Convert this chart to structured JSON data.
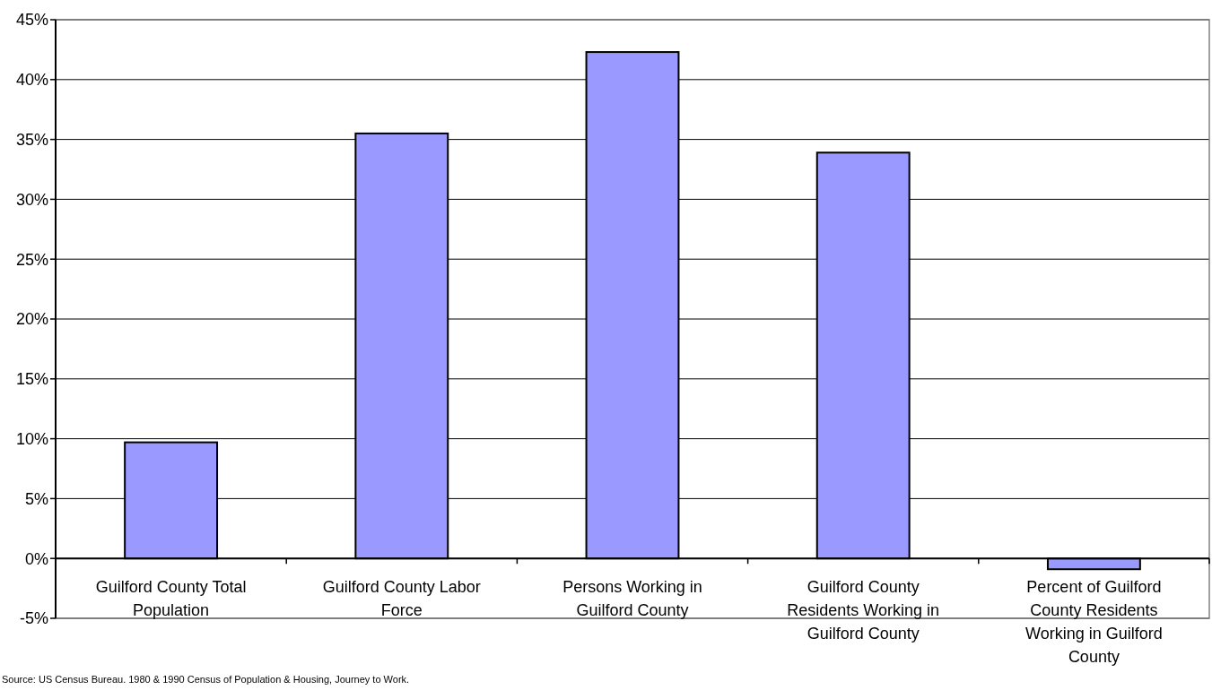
{
  "chart_data": {
    "type": "bar",
    "categories": [
      "Guilford County Total Population",
      "Guilford County Labor Force",
      "Persons Working in Guilford County",
      "Guilford County Residents Working in Guilford County",
      "Percent of Guilford County Residents Working in Guilford County"
    ],
    "values": [
      9.7,
      35.5,
      42.3,
      33.9,
      -0.9
    ],
    "color": "#9999ff",
    "ylim": [
      -5,
      45
    ],
    "yticks": [
      {
        "value": -5,
        "label": "-5%"
      },
      {
        "value": 0,
        "label": "0%"
      },
      {
        "value": 5,
        "label": "5%"
      },
      {
        "value": 10,
        "label": "10%"
      },
      {
        "value": 15,
        "label": "15%"
      },
      {
        "value": 20,
        "label": "20%"
      },
      {
        "value": 25,
        "label": "25%"
      },
      {
        "value": 30,
        "label": "30%"
      },
      {
        "value": 35,
        "label": "35%"
      },
      {
        "value": 40,
        "label": "40%"
      },
      {
        "value": 45,
        "label": "45%"
      }
    ],
    "grid": "y",
    "annotations": [
      "Source: US Census Bureau.  1980 & 1990 Census of Population & Housing, Journey to Work."
    ]
  }
}
